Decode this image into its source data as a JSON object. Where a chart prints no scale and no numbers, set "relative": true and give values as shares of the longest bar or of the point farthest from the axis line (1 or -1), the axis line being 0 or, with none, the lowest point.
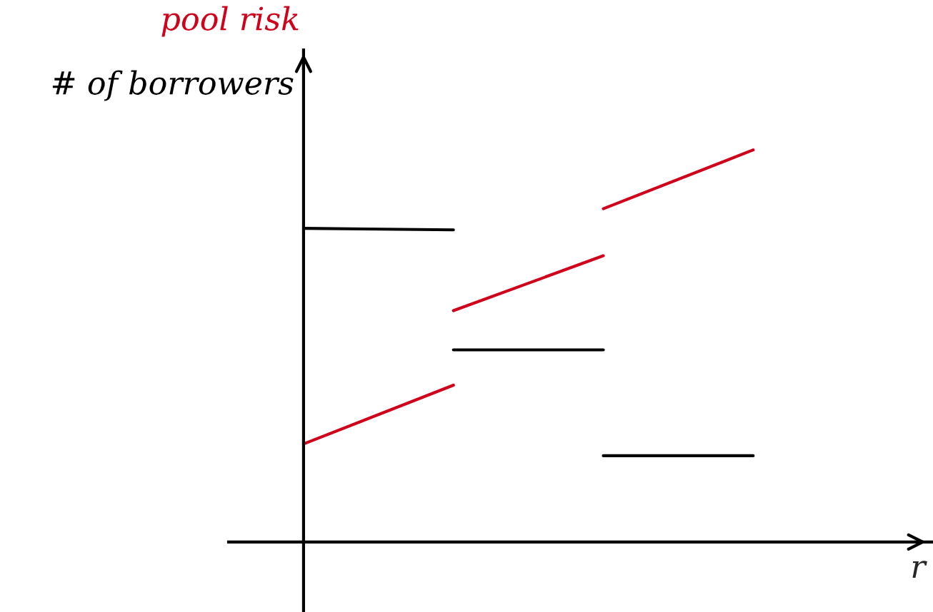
{
  "chart_data": {
    "type": "line",
    "relative": true,
    "xlabel": "r",
    "categories": [
      null,
      null,
      null,
      null
    ],
    "legend": "top left",
    "series": [
      {
        "name": "# of borrowers",
        "color": "#000000",
        "values": [
          0.8,
          0.796,
          null,
          null
        ]
      },
      {
        "color": "#000000",
        "values": [
          null,
          0.49,
          0.49,
          null
        ]
      },
      {
        "color": "#000000",
        "values": [
          null,
          null,
          0.22,
          0.22
        ]
      },
      {
        "name": "pool risk",
        "color": "#d0021b",
        "values": [
          0.25,
          0.4,
          null,
          null
        ]
      },
      {
        "color": "#d0021b",
        "values": [
          null,
          0.59,
          0.73,
          null
        ]
      },
      {
        "color": "#d0021b",
        "values": [
          null,
          null,
          0.85,
          1.0
        ]
      }
    ]
  }
}
